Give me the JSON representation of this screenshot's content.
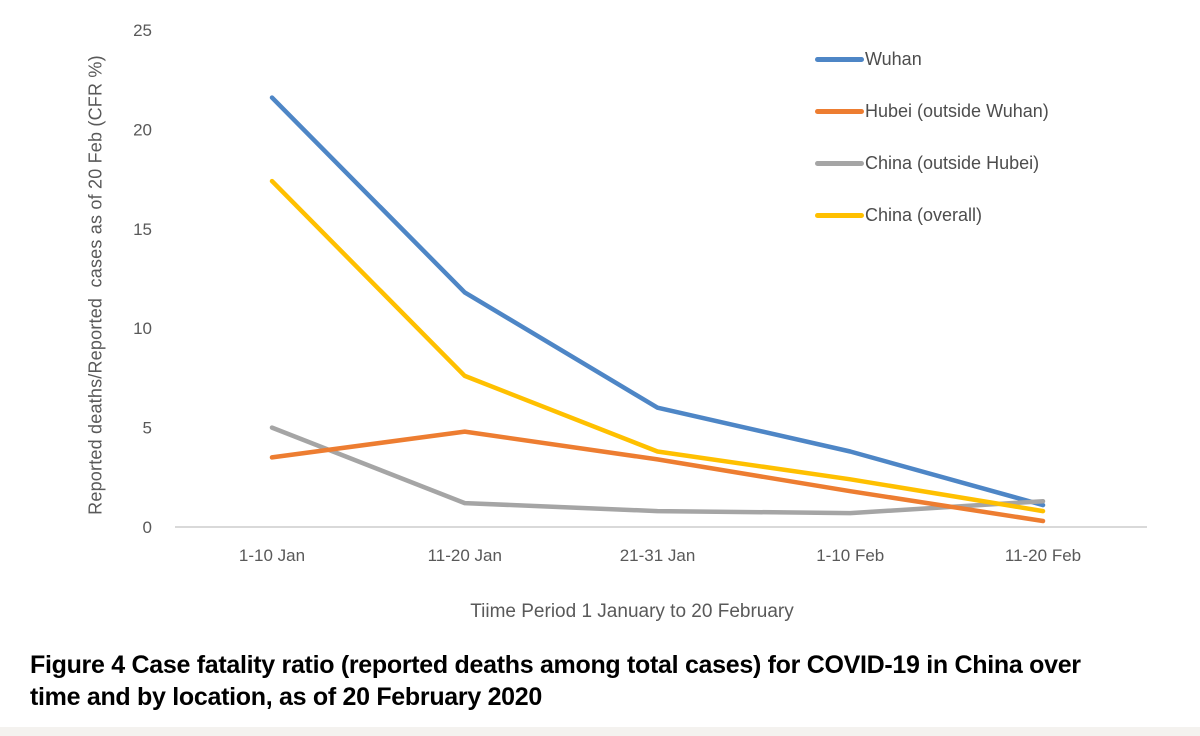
{
  "figure": {
    "caption": {
      "full_text": "Figure 4 Case fatality ratio (reported deaths among total cases) for COVID-19 in China over time and by location, as of 20 February 2020",
      "lines": [
        "Figure 4 Case fatality ratio (reported deaths among total cases) for COVID-19 in China over",
        "time and by location, as of 20 February 2020"
      ]
    }
  },
  "chart_data": {
    "type": "line",
    "title": "",
    "xlabel": "Tiime Period 1 January to 20 February",
    "ylabel": "Reported deaths/Reported  cases as of 20 Feb (CFR %)",
    "categories": [
      "1-10 Jan",
      "11-20 Jan",
      "21-31 Jan",
      "1-10 Feb",
      "11-20 Feb"
    ],
    "y_ticks": [
      0,
      5,
      10,
      15,
      20,
      25
    ],
    "ylim": [
      0,
      25
    ],
    "grid": false,
    "legend_position": "top-right",
    "axis_line_color": "#d9d9d9",
    "axis_text_color": "#595959",
    "series": [
      {
        "name": "Wuhan",
        "color": "#4e86c6",
        "values": [
          21.6,
          11.8,
          6.0,
          3.8,
          1.1
        ]
      },
      {
        "name": "Hubei (outside Wuhan)",
        "color": "#ed7d31",
        "values": [
          3.5,
          4.8,
          3.4,
          1.8,
          0.3
        ]
      },
      {
        "name": "China (outside Hubei)",
        "color": "#a5a5a5",
        "values": [
          5.0,
          1.2,
          0.8,
          0.7,
          1.3
        ]
      },
      {
        "name": "China (overall)",
        "color": "#ffc000",
        "values": [
          17.4,
          7.6,
          3.8,
          2.4,
          0.8
        ]
      }
    ]
  }
}
